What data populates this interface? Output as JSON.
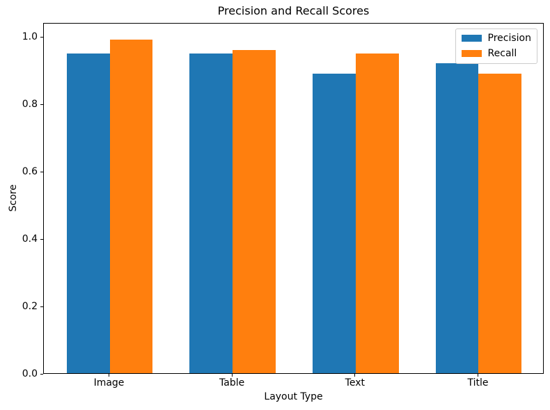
{
  "chart_data": {
    "type": "bar",
    "title": "Precision and Recall Scores",
    "xlabel": "Layout Type",
    "ylabel": "Score",
    "categories": [
      "Image",
      "Table",
      "Text",
      "Title"
    ],
    "series": [
      {
        "name": "Precision",
        "color": "#1f77b4",
        "values": [
          0.95,
          0.95,
          0.89,
          0.92
        ]
      },
      {
        "name": "Recall",
        "color": "#ff7f0e",
        "values": [
          0.99,
          0.96,
          0.95,
          0.89
        ]
      }
    ],
    "yticks": [
      "0.0",
      "0.2",
      "0.4",
      "0.6",
      "0.8",
      "1.0"
    ],
    "ylim": [
      0,
      1.042
    ],
    "xlim": [
      -0.535,
      3.535
    ],
    "bar_width": 0.35,
    "legend_position": "upper right",
    "grid": false,
    "spine_color": "#000000",
    "background_color": "#ffffff"
  }
}
